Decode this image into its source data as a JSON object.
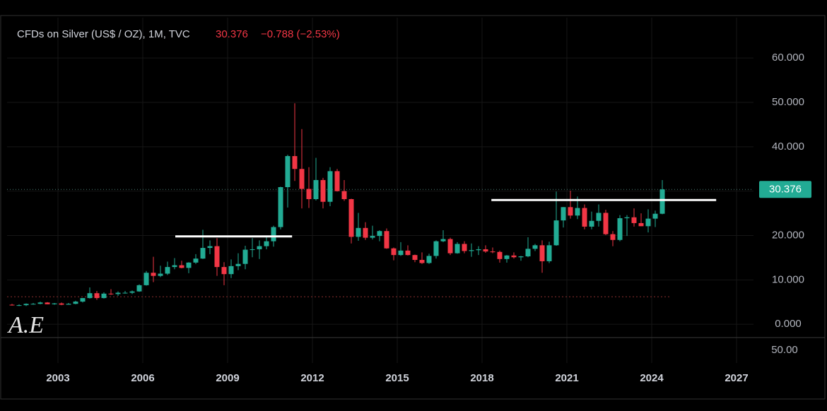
{
  "chart_data": {
    "type": "candlestick",
    "title": "CFDs on Silver (US$ / OZ), 1M, TVC",
    "last_price": 30.376,
    "change": "−0.788 (−2.53%)",
    "watermark": "A.E",
    "up_color": "#22ab94",
    "down_color": "#f23645",
    "grid": true,
    "xlim": [
      2001.2,
      2027.6
    ],
    "xticks": [
      2003,
      2006,
      2009,
      2012,
      2015,
      2018,
      2021,
      2024,
      2027
    ],
    "ylim": [
      -3.0,
      69.1
    ],
    "yticks": [
      {
        "value": 0,
        "label": "0.000"
      },
      {
        "value": 10,
        "label": "10.000"
      },
      {
        "value": 20,
        "label": "20.000"
      },
      {
        "value": 30,
        "label": "30.000"
      },
      {
        "value": 40,
        "label": "40.000"
      },
      {
        "value": 50,
        "label": "50.000"
      },
      {
        "value": 60,
        "label": "60.000"
      }
    ],
    "lower_pane_ticks": [
      {
        "value": 50,
        "label": "50.00"
      }
    ],
    "horizontal_lines": [
      {
        "y": 19.8,
        "x": [
          2007.15,
          2011.28
        ],
        "color": "#ffffff"
      },
      {
        "y": 28.0,
        "x": [
          2018.33,
          2026.28
        ],
        "color": "#ffffff"
      }
    ],
    "dotted_lines": [
      {
        "y": 6.2,
        "x": [
          2001.2,
          2024.7
        ],
        "color": "#8a2e2e"
      }
    ],
    "x": [
      2001.25,
      2001.5,
      2001.75,
      2002,
      2002.25,
      2002.5,
      2002.75,
      2003,
      2003.25,
      2003.5,
      2003.75,
      2004,
      2004.25,
      2004.5,
      2004.75,
      2005,
      2005.25,
      2005.5,
      2005.75,
      2006,
      2006.25,
      2006.5,
      2006.75,
      2007,
      2007.25,
      2007.5,
      2007.75,
      2008,
      2008.25,
      2008.5,
      2008.75,
      2009,
      2009.25,
      2009.5,
      2009.75,
      2010,
      2010.25,
      2010.5,
      2010.75,
      2011,
      2011.25,
      2011.5,
      2011.75,
      2012,
      2012.25,
      2012.5,
      2012.75,
      2013,
      2013.25,
      2013.5,
      2013.75,
      2014,
      2014.25,
      2014.5,
      2014.75,
      2015,
      2015.25,
      2015.5,
      2015.75,
      2016,
      2016.25,
      2016.5,
      2016.75,
      2017,
      2017.25,
      2017.5,
      2017.75,
      2018,
      2018.25,
      2018.5,
      2018.75,
      2019,
      2019.25,
      2019.5,
      2019.75,
      2020,
      2020.25,
      2020.5,
      2020.75,
      2021,
      2021.25,
      2021.5,
      2021.75,
      2022,
      2022.25,
      2022.5,
      2022.75,
      2023,
      2023.25,
      2023.5,
      2023.75,
      2024,
      2024.25
    ],
    "open": [
      4.4,
      4.3,
      4.3,
      4.6,
      4.6,
      4.9,
      4.5,
      4.7,
      4.4,
      4.6,
      5.1,
      5.9,
      7.0,
      5.9,
      6.9,
      6.8,
      7.1,
      7.1,
      7.4,
      8.8,
      11.6,
      10.9,
      11.4,
      12.9,
      13.3,
      12.7,
      13.9,
      14.8,
      17.2,
      17.6,
      12.9,
      11.3,
      13.1,
      13.6,
      16.8,
      16.9,
      17.6,
      18.7,
      21.9,
      30.9,
      37.9,
      35.0,
      30.5,
      28.2,
      32.5,
      27.6,
      34.5,
      30.0,
      28.2,
      19.7,
      21.7,
      19.5,
      19.9,
      21.0,
      17.1,
      15.6,
      16.6,
      15.6,
      14.5,
      13.8,
      15.4,
      18.7,
      19.2,
      16.0,
      18.1,
      16.5,
      16.7,
      16.9,
      16.4,
      16.3,
      14.7,
      15.5,
      15.1,
      15.3,
      17.0,
      17.8,
      14.2,
      17.8,
      23.4,
      26.4,
      24.5,
      26.2,
      22.0,
      23.3,
      25.1,
      20.3,
      19.0,
      23.9,
      24.1,
      22.8,
      22.1,
      23.8,
      24.9
    ],
    "high": [
      4.6,
      4.5,
      4.7,
      4.8,
      5.1,
      5.0,
      4.8,
      4.9,
      4.8,
      5.3,
      5.9,
      8.3,
      7.5,
      7.2,
      7.9,
      7.4,
      7.5,
      7.6,
      9.0,
      12.0,
      15.2,
      13.2,
      14.1,
      14.9,
      14.3,
      14.0,
      15.8,
      21.3,
      18.9,
      19.4,
      14.0,
      14.6,
      16.0,
      17.7,
      19.4,
      18.9,
      19.8,
      22.2,
      31.0,
      38.2,
      49.8,
      44.0,
      35.4,
      37.5,
      33.0,
      35.4,
      35.0,
      32.5,
      28.3,
      25.1,
      23.0,
      22.2,
      21.2,
      21.6,
      17.3,
      18.5,
      17.8,
      15.7,
      16.2,
      15.9,
      18.9,
      21.2,
      19.5,
      18.5,
      18.7,
      18.2,
      17.6,
      17.8,
      17.3,
      16.6,
      15.6,
      16.2,
      15.4,
      19.6,
      18.1,
      18.9,
      18.6,
      29.9,
      26.4,
      30.1,
      28.8,
      27.0,
      25.4,
      27.0,
      25.8,
      21.0,
      24.6,
      24.6,
      26.1,
      25.0,
      25.9,
      25.6,
      32.5
    ],
    "low": [
      4.2,
      4.1,
      4.1,
      4.4,
      4.5,
      4.5,
      4.4,
      4.3,
      4.4,
      4.5,
      4.9,
      5.8,
      5.5,
      5.8,
      6.6,
      6.4,
      6.9,
      6.8,
      7.3,
      8.7,
      9.5,
      10.6,
      11.1,
      12.4,
      12.6,
      11.5,
      13.6,
      14.7,
      15.8,
      10.9,
      8.8,
      10.4,
      12.2,
      12.4,
      15.1,
      14.7,
      16.9,
      17.5,
      21.4,
      26.3,
      32.3,
      26.1,
      26.2,
      27.9,
      26.1,
      26.6,
      29.9,
      27.8,
      18.2,
      18.8,
      19.0,
      19.1,
      18.7,
      17.0,
      14.4,
      15.4,
      15.5,
      14.0,
      13.6,
      13.6,
      14.8,
      18.5,
      15.6,
      15.9,
      16.0,
      15.2,
      15.6,
      16.1,
      16.0,
      13.9,
      13.9,
      14.8,
      14.3,
      15.1,
      16.5,
      11.6,
      13.8,
      17.7,
      21.8,
      23.8,
      23.7,
      21.4,
      21.4,
      22.0,
      20.1,
      17.6,
      18.7,
      19.9,
      22.0,
      22.1,
      20.7,
      21.9,
      24.8
    ],
    "close": [
      4.3,
      4.3,
      4.6,
      4.6,
      4.9,
      4.5,
      4.7,
      4.4,
      4.6,
      5.1,
      5.9,
      7.0,
      5.9,
      6.9,
      6.8,
      7.1,
      7.1,
      7.4,
      8.8,
      11.6,
      10.9,
      11.4,
      12.9,
      13.3,
      12.7,
      13.9,
      14.8,
      17.2,
      17.6,
      12.9,
      11.3,
      13.1,
      13.6,
      16.8,
      16.9,
      17.6,
      18.7,
      21.9,
      30.9,
      37.9,
      35.0,
      30.5,
      28.2,
      32.5,
      27.6,
      34.5,
      30.0,
      28.2,
      19.7,
      21.7,
      19.5,
      19.9,
      21.0,
      17.1,
      15.6,
      16.6,
      15.6,
      14.5,
      13.8,
      15.4,
      18.7,
      19.2,
      16.0,
      18.1,
      16.5,
      16.7,
      16.9,
      16.4,
      16.3,
      14.7,
      15.5,
      15.1,
      15.3,
      17.0,
      17.8,
      14.2,
      17.8,
      23.4,
      26.4,
      24.5,
      26.2,
      22.0,
      23.3,
      25.1,
      20.3,
      19.0,
      23.9,
      24.1,
      22.8,
      22.1,
      23.8,
      24.9,
      30.4
    ]
  }
}
